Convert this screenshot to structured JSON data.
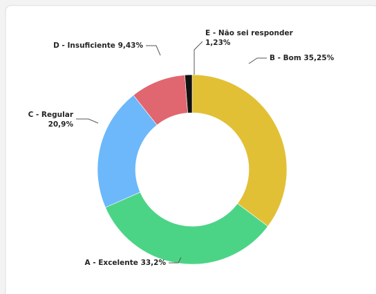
{
  "chart_data": {
    "type": "donut",
    "categories": [
      "B - Bom",
      "A - Excelente",
      "C - Regular",
      "D - Insuficiente",
      "E - Não sei responder"
    ],
    "values": [
      35.25,
      33.2,
      20.9,
      9.43,
      1.23
    ],
    "value_labels": [
      "35,25%",
      "33,2%",
      "20,9%",
      "9,43%",
      "1,23%"
    ],
    "colors": [
      "#e2c036",
      "#4cd486",
      "#6cb8fa",
      "#e0676f",
      "#111111"
    ]
  }
}
